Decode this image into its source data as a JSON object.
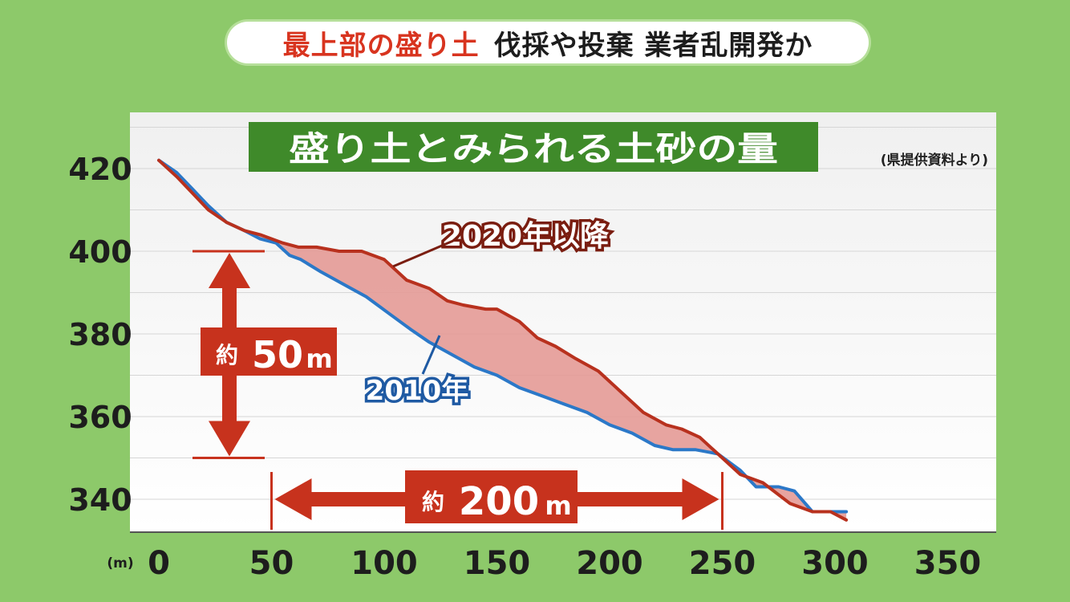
{
  "headline": {
    "highlight": "最上部の盛り土",
    "rest": "伐採や投棄 業者乱開発か"
  },
  "chart_data": {
    "type": "line",
    "title": "盛り土とみられる土砂の量",
    "source_note": "(県提供資料より)",
    "x_unit": "(m)",
    "xlim": [
      0,
      350
    ],
    "ylim": [
      334,
      432
    ],
    "x_ticks": [
      "0",
      "50",
      "100",
      "150",
      "200",
      "250",
      "300",
      "350"
    ],
    "y_ticks": [
      "420",
      "400",
      "380",
      "360",
      "340"
    ],
    "series": [
      {
        "name": "2020年以降",
        "color": "#b8311e",
        "points": [
          [
            0,
            422
          ],
          [
            8,
            418
          ],
          [
            15,
            414
          ],
          [
            22,
            410
          ],
          [
            30,
            407
          ],
          [
            38,
            405
          ],
          [
            45,
            404
          ],
          [
            55,
            402
          ],
          [
            62,
            401
          ],
          [
            70,
            401
          ],
          [
            80,
            400
          ],
          [
            90,
            400
          ],
          [
            100,
            398
          ],
          [
            110,
            393
          ],
          [
            120,
            391
          ],
          [
            128,
            388
          ],
          [
            135,
            387
          ],
          [
            145,
            386
          ],
          [
            150,
            386
          ],
          [
            160,
            383
          ],
          [
            168,
            379
          ],
          [
            176,
            377
          ],
          [
            185,
            374
          ],
          [
            195,
            371
          ],
          [
            205,
            366
          ],
          [
            215,
            361
          ],
          [
            225,
            358
          ],
          [
            232,
            357
          ],
          [
            240,
            355
          ],
          [
            248,
            351
          ],
          [
            258,
            346
          ],
          [
            268,
            344
          ],
          [
            280,
            339
          ],
          [
            290,
            337
          ],
          [
            298,
            337
          ],
          [
            305,
            335
          ]
        ]
      },
      {
        "name": "2010年",
        "color": "#2b78c8",
        "points": [
          [
            0,
            422
          ],
          [
            8,
            419
          ],
          [
            15,
            415
          ],
          [
            22,
            411
          ],
          [
            30,
            407
          ],
          [
            38,
            405
          ],
          [
            45,
            403
          ],
          [
            52,
            402
          ],
          [
            58,
            399
          ],
          [
            63,
            398
          ],
          [
            72,
            395
          ],
          [
            82,
            392
          ],
          [
            92,
            389
          ],
          [
            102,
            385
          ],
          [
            112,
            381
          ],
          [
            120,
            378
          ],
          [
            130,
            375
          ],
          [
            140,
            372
          ],
          [
            150,
            370
          ],
          [
            160,
            367
          ],
          [
            170,
            365
          ],
          [
            180,
            363
          ],
          [
            190,
            361
          ],
          [
            200,
            358
          ],
          [
            210,
            356
          ],
          [
            220,
            353
          ],
          [
            228,
            352
          ],
          [
            238,
            352
          ],
          [
            248,
            351
          ],
          [
            258,
            347
          ],
          [
            265,
            343
          ],
          [
            275,
            343
          ],
          [
            282,
            342
          ],
          [
            290,
            337
          ],
          [
            298,
            337
          ],
          [
            305,
            337
          ]
        ]
      }
    ],
    "annotations": {
      "height_label_prefix": "約",
      "height_label_value": "50",
      "height_label_unit": "m",
      "width_label_prefix": "約",
      "width_label_value": "200",
      "width_label_unit": "m"
    },
    "colors": {
      "background": "#8dc96a",
      "plot_background": "#ffffff",
      "fill_between": "#e49a96",
      "arrow": "#c7321d",
      "title_box": "#3f8a2a"
    }
  }
}
